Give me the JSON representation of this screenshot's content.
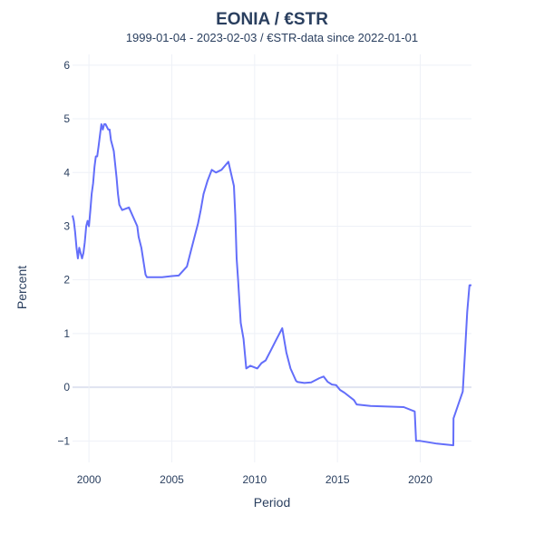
{
  "chart_data": {
    "type": "line",
    "title": "EONIA / €STR",
    "subtitle": "1999-01-04 - 2023-02-03 / €STR-data since 2022-01-01",
    "xlabel": "Period",
    "ylabel": "Percent",
    "xlim": [
      "1999-01-04",
      "2023-02-03"
    ],
    "ylim": [
      -1.4,
      6.2
    ],
    "x_ticks": [
      "2000",
      "2005",
      "2010",
      "2015",
      "2020"
    ],
    "y_ticks": [
      "6",
      "5",
      "4",
      "3",
      "2",
      "1",
      "0",
      "−1"
    ],
    "grid": true,
    "line_color": "#636efa",
    "series": [
      {
        "x": [
          "1999-01-04",
          "1999-02-01",
          "1999-03-01",
          "1999-04-01",
          "1999-05-01",
          "1999-06-01",
          "1999-07-01",
          "1999-08-01",
          "1999-09-01",
          "1999-10-01",
          "1999-11-01",
          "1999-12-01",
          "2000-01-01",
          "2000-02-01",
          "2000-03-01",
          "2000-04-01",
          "2000-05-01",
          "2000-06-01",
          "2000-07-01",
          "2000-08-01",
          "2000-09-01",
          "2000-10-01",
          "2000-11-01",
          "2000-12-01",
          "2001-01-01",
          "2001-03-01",
          "2001-04-01",
          "2001-05-01",
          "2001-06-01",
          "2001-07-01",
          "2001-09-01",
          "2001-10-01",
          "2001-11-01",
          "2002-01-01",
          "2002-06-01",
          "2002-12-01",
          "2003-01-01",
          "2003-03-01",
          "2003-06-01",
          "2003-07-01",
          "2004-01-01",
          "2004-06-01",
          "2005-01-01",
          "2005-06-01",
          "2005-12-01",
          "2006-03-01",
          "2006-06-01",
          "2006-08-01",
          "2006-10-01",
          "2006-12-01",
          "2007-03-01",
          "2007-06-01",
          "2007-09-01",
          "2008-01-01",
          "2008-06-01",
          "2008-10-01",
          "2008-11-01",
          "2008-12-01",
          "2009-01-01",
          "2009-03-01",
          "2009-05-01",
          "2009-07-01",
          "2009-10-01",
          "2010-03-01",
          "2010-06-01",
          "2010-09-01",
          "2011-01-01",
          "2011-04-01",
          "2011-07-01",
          "2011-09-01",
          "2011-12-01",
          "2012-03-01",
          "2012-07-01",
          "2012-08-01",
          "2013-01-01",
          "2013-06-01",
          "2013-12-01",
          "2014-03-01",
          "2014-06-01",
          "2014-09-01",
          "2014-12-01",
          "2015-03-01",
          "2015-06-01",
          "2016-01-01",
          "2016-03-01",
          "2017-01-01",
          "2018-01-01",
          "2019-01-01",
          "2019-09-01",
          "2019-10-01",
          "2020-01-01",
          "2021-01-01",
          "2021-12-31",
          "2022-01-03",
          "2022-07-27",
          "2022-09-14",
          "2022-11-02",
          "2022-12-21",
          "2023-02-03"
        ],
        "y": [
          3.2,
          3.1,
          2.9,
          2.6,
          2.4,
          2.6,
          2.5,
          2.4,
          2.5,
          2.7,
          3.0,
          3.1,
          3.0,
          3.3,
          3.6,
          3.8,
          4.1,
          4.3,
          4.3,
          4.5,
          4.7,
          4.9,
          4.8,
          4.9,
          4.9,
          4.8,
          4.8,
          4.6,
          4.5,
          4.4,
          3.9,
          3.6,
          3.4,
          3.3,
          3.35,
          3.0,
          2.8,
          2.6,
          2.1,
          2.05,
          2.05,
          2.05,
          2.07,
          2.08,
          2.25,
          2.55,
          2.85,
          3.05,
          3.3,
          3.6,
          3.85,
          4.05,
          4.0,
          4.05,
          4.2,
          3.75,
          3.2,
          2.4,
          2.0,
          1.2,
          0.9,
          0.35,
          0.4,
          0.35,
          0.45,
          0.5,
          0.7,
          0.85,
          1.0,
          1.1,
          0.65,
          0.35,
          0.12,
          0.1,
          0.08,
          0.09,
          0.17,
          0.2,
          0.1,
          0.05,
          0.04,
          -0.05,
          -0.1,
          -0.24,
          -0.32,
          -0.35,
          -0.36,
          -0.37,
          -0.45,
          -1.0,
          -1.0,
          -1.05,
          -1.08,
          -0.58,
          -0.08,
          0.66,
          1.4,
          1.9,
          1.9
        ]
      }
    ]
  }
}
